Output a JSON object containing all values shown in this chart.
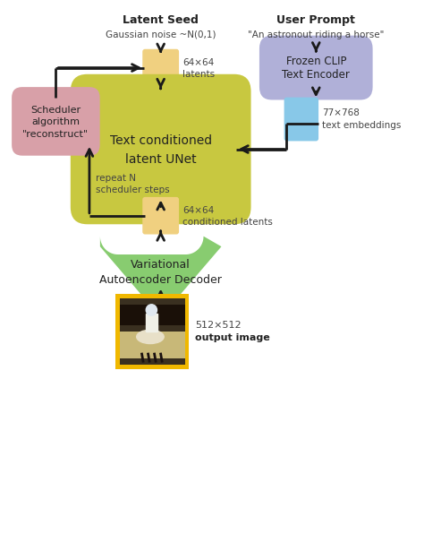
{
  "bg_color": "#ffffff",
  "title_latent_seed": "Latent Seed",
  "subtitle_latent_seed": "Gaussian noise ~N(0,1)",
  "title_user_prompt": "User Prompt",
  "subtitle_user_prompt": "\"An astronout riding a horse\"",
  "label_latents_line1": "64×64",
  "label_latents_line2": "latents",
  "label_clip_line1": "Frozen CLIP",
  "label_clip_line2": "Text Encoder",
  "label_embed_line1": "77×768",
  "label_embed_line2": "text embeddings",
  "label_unet_line1": "Text conditioned",
  "label_unet_line2": "latent UNet",
  "label_scheduler_line1": "Scheduler",
  "label_scheduler_line2": "algorithm",
  "label_scheduler_line3": "\"reconstruct\"",
  "label_cond_line1": "64×64",
  "label_cond_line2": "conditioned latents",
  "label_vae_line1": "Variational",
  "label_vae_line2": "Autoencoder Decoder",
  "label_output_line1": "512×512",
  "label_output_line2": "output image",
  "label_repeat_line1": "repeat N",
  "label_repeat_line2": "scheduler steps",
  "color_latent_box": "#f0d080",
  "color_clip_box": "#b0b0d8",
  "color_unet_box": "#c8c840",
  "color_scheduler_box": "#d8a0a8",
  "color_embed_box": "#88c8e8",
  "color_vae_box": "#88cc70",
  "color_output_border": "#f0b800",
  "arrow_color": "#1a1a1a",
  "text_color_dark": "#222222",
  "text_color_mid": "#444444"
}
